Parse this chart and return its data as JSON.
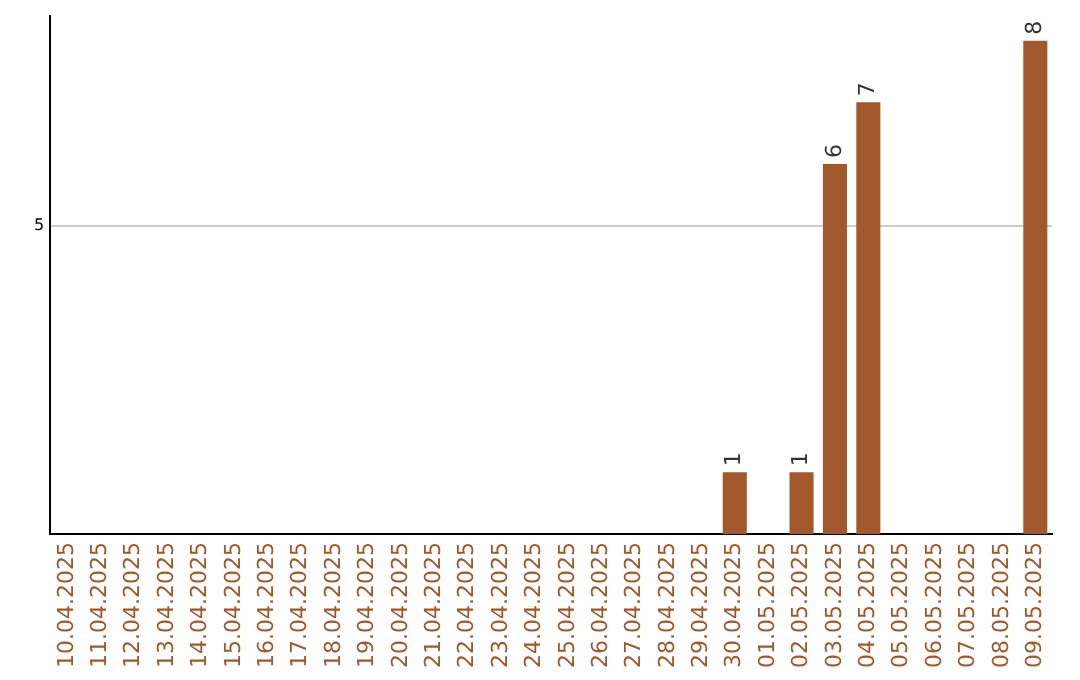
{
  "chart_data": {
    "type": "bar",
    "categories": [
      "10.04.2025",
      "11.04.2025",
      "12.04.2025",
      "13.04.2025",
      "14.04.2025",
      "15.04.2025",
      "16.04.2025",
      "17.04.2025",
      "18.04.2025",
      "19.04.2025",
      "20.04.2025",
      "21.04.2025",
      "22.04.2025",
      "23.04.2025",
      "24.04.2025",
      "25.04.2025",
      "26.04.2025",
      "27.04.2025",
      "28.04.2025",
      "29.04.2025",
      "30.04.2025",
      "01.05.2025",
      "02.05.2025",
      "03.05.2025",
      "04.05.2025",
      "05.05.2025",
      "06.05.2025",
      "07.05.2025",
      "08.05.2025",
      "09.05.2025"
    ],
    "values": [
      null,
      null,
      null,
      null,
      null,
      null,
      null,
      null,
      null,
      null,
      null,
      null,
      null,
      null,
      null,
      null,
      null,
      null,
      null,
      null,
      1,
      null,
      1,
      6,
      7,
      null,
      null,
      null,
      null,
      8
    ],
    "data_labels": true,
    "color": "#a0582c",
    "ylim": [
      0,
      8.4
    ],
    "yticks": [
      5
    ],
    "grid": "y"
  }
}
